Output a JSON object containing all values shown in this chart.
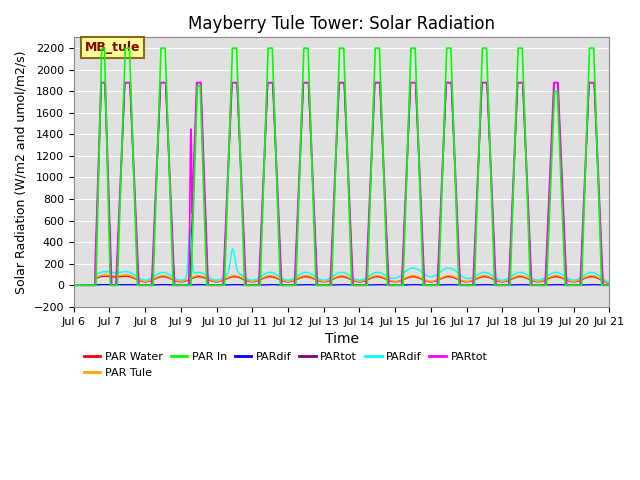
{
  "title": "Mayberry Tule Tower: Solar Radiation",
  "xlabel": "Time",
  "ylabel": "Solar Radiation (W/m2 and umol/m2/s)",
  "ylim": [
    -200,
    2300
  ],
  "xlim": [
    0,
    15
  ],
  "bg_color": "#e0e0e0",
  "fig_bg": "#ffffff",
  "x_ticks_labels": [
    "Jul 6",
    "Jul 7",
    "Jul 8",
    "Jul 9",
    "Jul 10",
    "Jul 11",
    "Jul 12",
    "Jul 13",
    "Jul 14",
    "Jul 15",
    "Jul 16",
    "Jul 17",
    "Jul 18",
    "Jul 19",
    "Jul 20",
    "Jul 21"
  ],
  "annotation_text": "MB_tule",
  "annotation_color": "#8b0000",
  "annotation_bg": "#ffff99",
  "annotation_border": "#8b6914"
}
